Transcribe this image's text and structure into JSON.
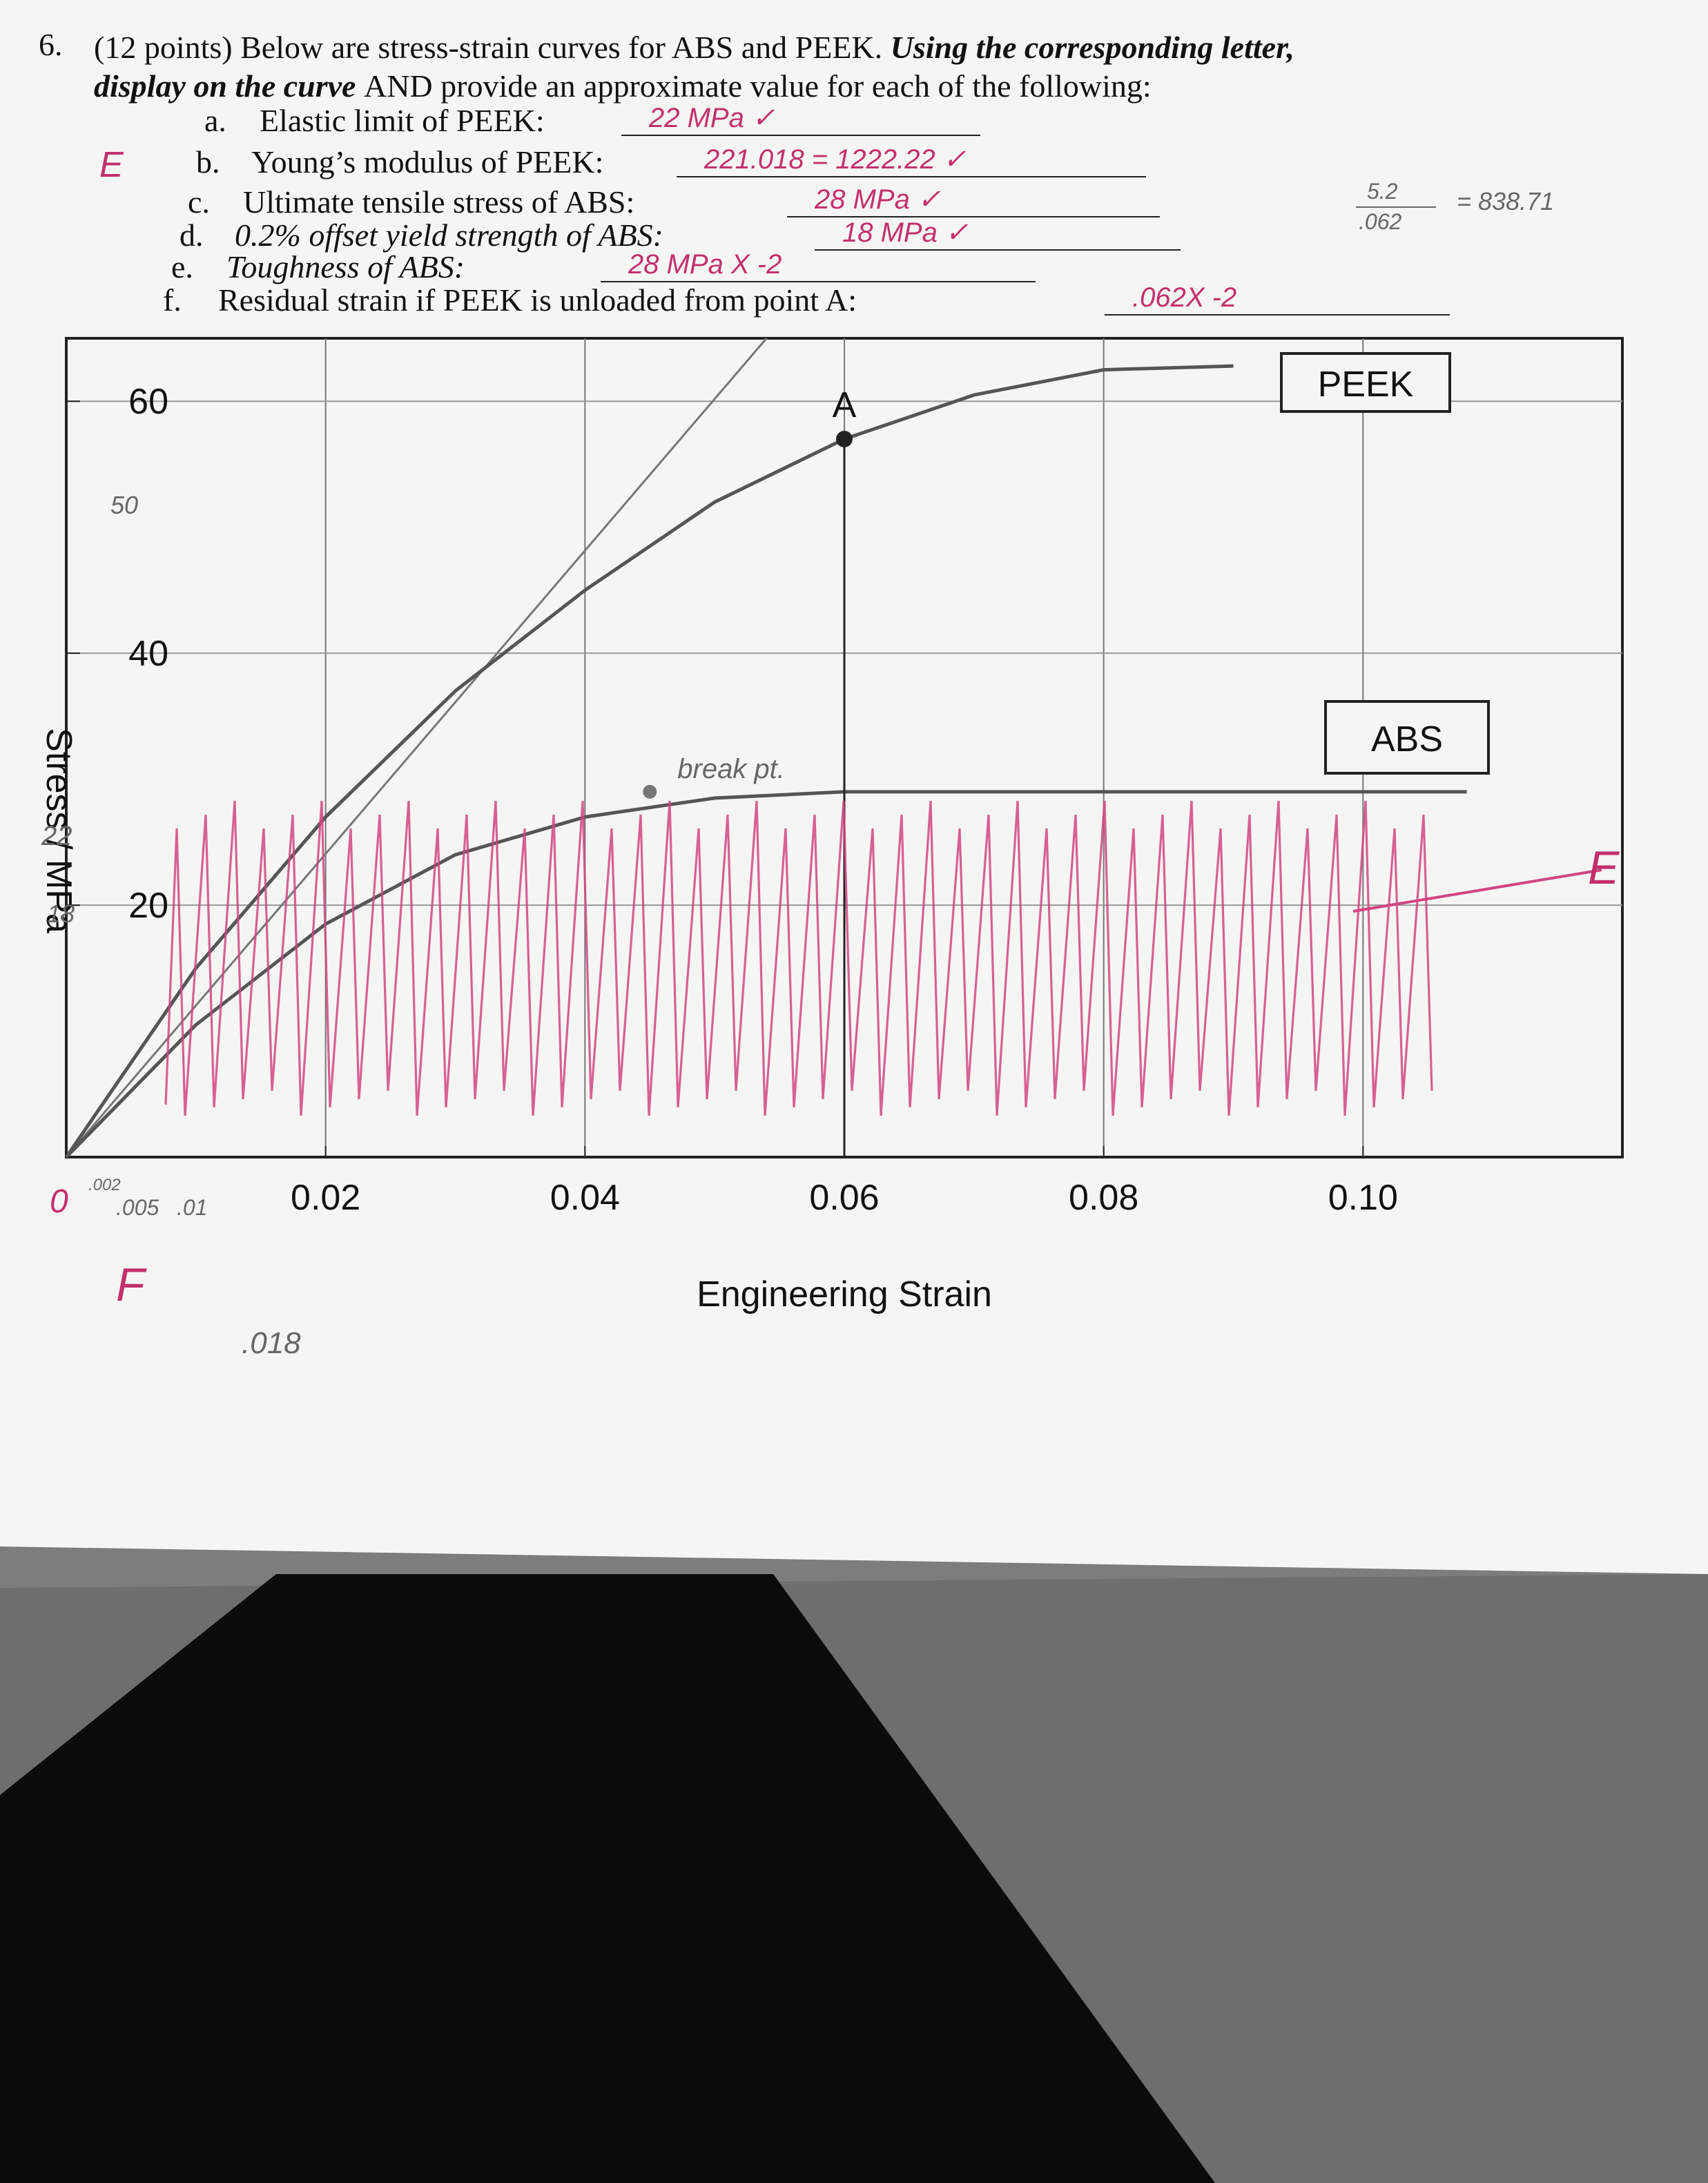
{
  "question": {
    "number": "6.",
    "points": "(12 points)",
    "text": "Below are stress-strain curves for ABS and PEEK.",
    "instruction": "Using the corresponding letter,",
    "instruction_cont": "display on the curve",
    "text_cont": "AND provide an approximate value for each of the following:"
  },
  "items": [
    {
      "letter": "a.",
      "text": "Elastic limit of PEEK:",
      "answer": "22 MPa ✓"
    },
    {
      "letter": "b.",
      "text": "Young’s modulus of PEEK:",
      "answer": "221.018 = 1222.22 ✓"
    },
    {
      "letter": "c.",
      "text": "Ultimate tensile stress of ABS:",
      "answer": "28 MPa ✓"
    },
    {
      "letter": "d.",
      "text": "0.2% offset yield strength of ABS:",
      "answer": "18 MPa ✓"
    },
    {
      "letter": "e.",
      "text": "Toughness of ABS:",
      "answer": "28 MPa X -2"
    },
    {
      "letter": "f.",
      "text": "Residual strain if PEEK is unloaded from point A:",
      "answer": ".062X -2"
    }
  ],
  "handwriting": {
    "margin_e": "E",
    "calc_top": "5.2",
    "calc_bottom": ".062",
    "calc_result": "= 838.71",
    "y_note_50": "50",
    "y_note_22": "22",
    "y_note_18": "18",
    "x_note_0": "0",
    "x_note_002": ".002",
    "x_note_005": ".005",
    "x_note_01": ".01",
    "x_note_018": ".018",
    "label_f": "F",
    "label_e": "E"
  },
  "chart_data": {
    "type": "line",
    "x_label": "Engineering Strain",
    "y_label": "Stress / MPa",
    "x": [
      0,
      0.01,
      0.02,
      0.03,
      0.04,
      0.05,
      0.06,
      0.07,
      0.08,
      0.09,
      0.1,
      0.108
    ],
    "series": [
      {
        "name": "PEEK",
        "color": "#555555",
        "values": [
          0,
          15,
          27,
          37,
          45,
          52,
          57,
          60.5,
          62.5,
          62.8,
          null,
          null
        ]
      },
      {
        "name": "ABS",
        "color": "#555555",
        "values": [
          0,
          10.5,
          18.5,
          24,
          27,
          28.5,
          29,
          29,
          29,
          29,
          29,
          29
        ]
      }
    ],
    "xlim": [
      0,
      0.12
    ],
    "ylim": [
      0,
      65
    ],
    "xticks": [
      {
        "value": 0.02,
        "label": "0.02"
      },
      {
        "value": 0.04,
        "label": "0.04"
      },
      {
        "value": 0.06,
        "label": "0.06"
      },
      {
        "value": 0.08,
        "label": "0.08"
      },
      {
        "value": 0.1,
        "label": "0.10"
      }
    ],
    "yticks": [
      20,
      40,
      60
    ],
    "grid": true,
    "annotations": [
      {
        "label": "A",
        "x": 0.06,
        "y": 57
      },
      {
        "label": "break pt.",
        "x": 0.045,
        "y": 29
      }
    ]
  }
}
